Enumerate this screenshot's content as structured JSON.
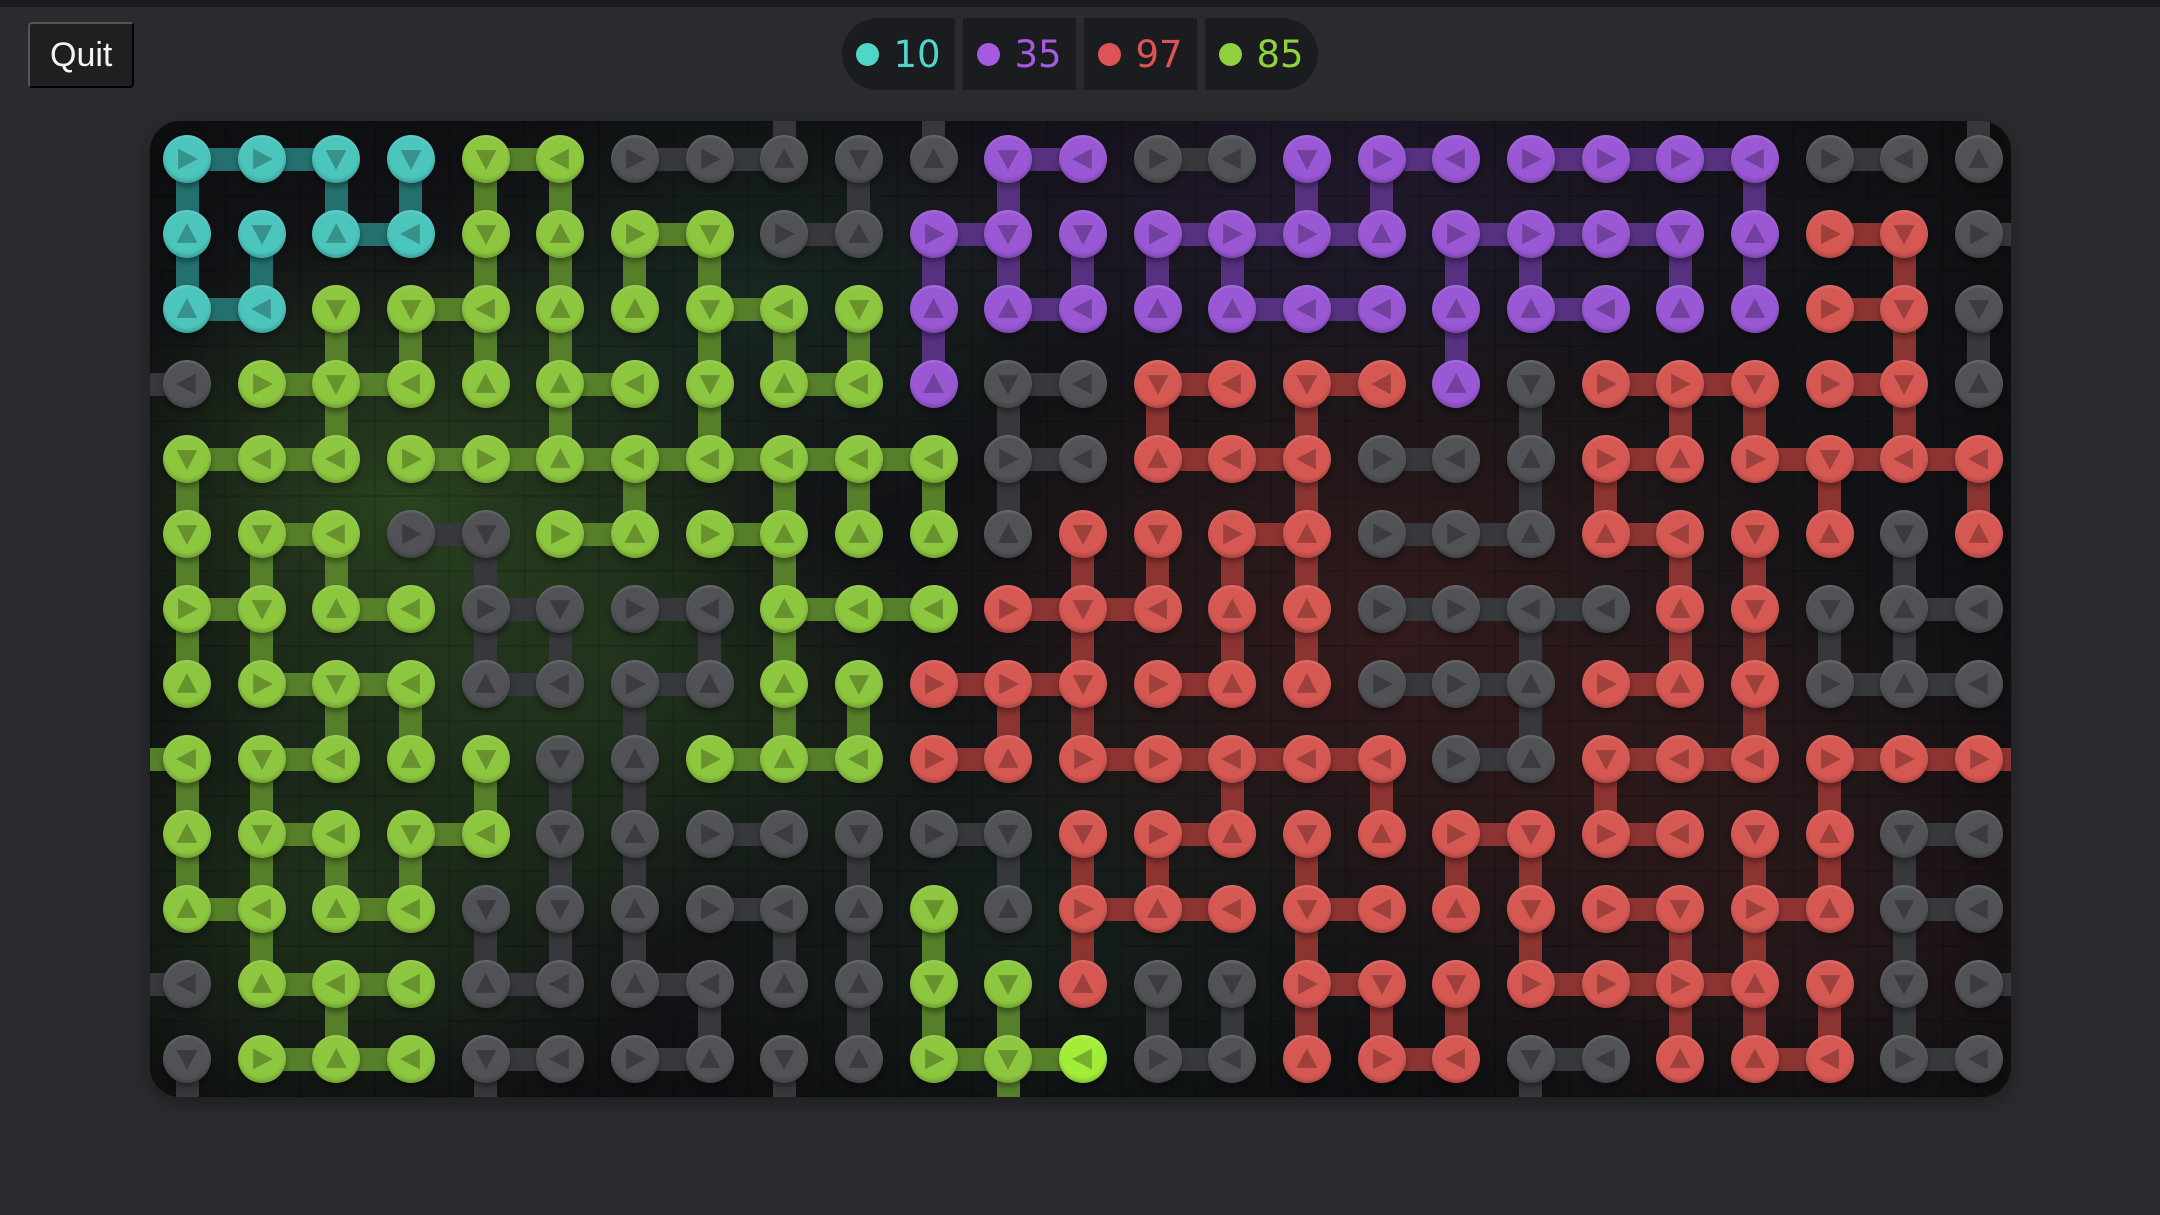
{
  "header": {
    "quit_label": "Quit",
    "legend": [
      {
        "team": "cyan",
        "color": "#4fd6c8",
        "count": "10"
      },
      {
        "team": "purple",
        "color": "#a55ae0",
        "count": "35"
      },
      {
        "team": "red",
        "color": "#dd5454",
        "count": "97"
      },
      {
        "team": "green",
        "color": "#8fd13e",
        "count": "85"
      }
    ]
  },
  "colors": {
    "C": {
      "fill": "#4cc5bd",
      "bar": "#23706e"
    },
    "G": {
      "fill": "#8dc63f",
      "bar": "#567f2a"
    },
    "P": {
      "fill": "#9a58d5",
      "bar": "#55317f"
    },
    "R": {
      "fill": "#d65853",
      "bar": "#8c3431"
    },
    "D": {
      "fill": "#505255",
      "bar": "#36383b"
    }
  },
  "board": {
    "cols": 25,
    "rows_count": 13,
    "cell_legend": "token = color letter (C cyan, G green, P purple, R red, D gray) + arrow direction (^ up, v down, < left, > right); '!' = highlighted node",
    "rows": [
      "C> C> Cv Cv Gv G< D> D> D^ Dv D^ Pv P< D> D< Pv P> P< P> P> P> P< D> D< D^",
      "C^ Cv C^ C< Gv G^ G> Gv D> D^ P> Pv Pv P> P> P> P^ P> P> P> Pv P^ R> Rv D>",
      "C^ C< Gv Gv G< G^ G^ Gv G< Gv P^ P^ P< P^ P^ P< P< P^ P^ P< P^ P^ R> Rv Dv",
      "D< G> Gv G< G^ G^ G< Gv G^ G< P^ Dv D< Rv R< Rv R< P^ Dv R> R> Rv R> Rv D^",
      "Gv G< G< G> G> G^ G< G< G< G< G< D> D< R^ R< R< D> D< D^ R> R^ R> Rv R< R<",
      "Gv Gv G< D> Dv G> G^ G> G^ G^ G^ D^ Rv Rv R> R^ D> D> D^ R^ R< Rv R^ Dv R^",
      "G> Gv G^ G< D> Dv D> D< G^ G< G< R> Rv R< R^ R^ D> D> D< D< R^ Rv Dv D^ D<",
      "G^ G> Gv G< D^ D< D> D^ G^ Gv R> R> Rv R> R^ R^ D> D> D^ R> R^ Rv D> D^ D<",
      "G< Gv G< G^ Gv Dv D^ G> G^ G< R> R^ R> R> R< R< R< D> D^ Rv R< R< R> R> R>",
      "G^ Gv G< Gv G< Dv D^ D> D< Dv D> Dv Rv R> R^ Rv R^ R> Rv R> R< Rv R^ Dv D<",
      "G^ G< G^ G< Dv Dv D^ D> D< D^ Gv D^ R> R^ R< Rv R< R^ Rv R> Rv R> R^ Dv D<",
      "D< G^ G< G< D^ D< D^ D< D^ D^ Gv Gv R^ Dv Dv R> Rv Rv R> R> R> R^ Rv Dv D>",
      "Dv G> G^ G< Dv D< D> D^ Dv D^ G> Gv G<! D> D< R^ R> R< Dv D< R^ R^ R< D> D<"
    ]
  }
}
